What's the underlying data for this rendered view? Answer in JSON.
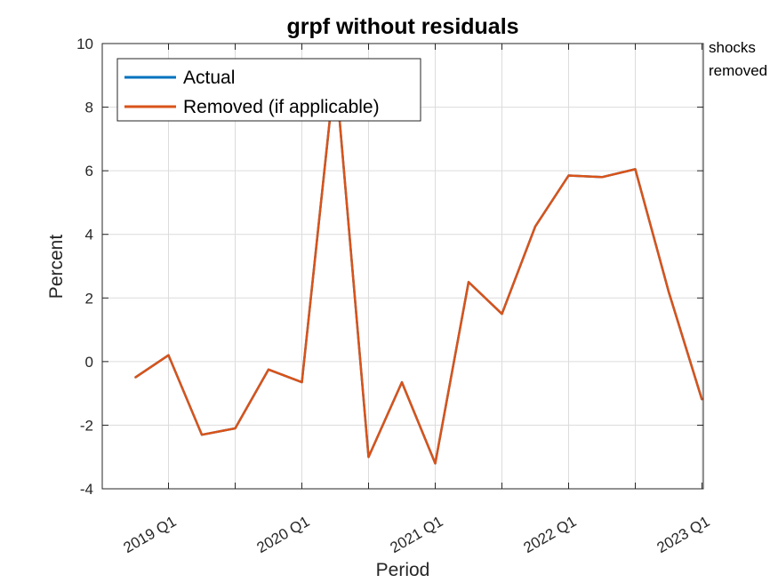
{
  "chart_data": {
    "type": "line",
    "title": "grpf without residuals",
    "xlabel": "Period",
    "ylabel": "Percent",
    "ylim": [
      -4,
      10
    ],
    "y_ticks": [
      "-4",
      "-2",
      "0",
      "2",
      "4",
      "6",
      "8",
      "10"
    ],
    "x_ticks": [
      "2019 Q1",
      "2020 Q1",
      "2021 Q1",
      "2022 Q1",
      "2023 Q1"
    ],
    "x": [
      "2018 Q4",
      "2019 Q1",
      "2019 Q2",
      "2019 Q3",
      "2019 Q4",
      "2020 Q1",
      "2020 Q2",
      "2020 Q3",
      "2020 Q4",
      "2021 Q1",
      "2021 Q2",
      "2021 Q3",
      "2021 Q4",
      "2022 Q1",
      "2022 Q2",
      "2022 Q3",
      "2022 Q4",
      "2023 Q1"
    ],
    "grid": true,
    "legend_position": "top-left",
    "series": [
      {
        "name": "Actual",
        "color": "#0072BD",
        "values": [
          -0.5,
          0.2,
          -2.3,
          -2.1,
          -0.25,
          -0.65,
          9.2,
          -3.0,
          -0.65,
          -3.2,
          2.5,
          1.5,
          4.25,
          5.85,
          5.8,
          6.05,
          2.2,
          -1.2
        ]
      },
      {
        "name": "Removed (if applicable)",
        "color": "#D95319",
        "values": [
          -0.5,
          0.2,
          -2.3,
          -2.1,
          -0.25,
          -0.65,
          9.2,
          -3.0,
          -0.65,
          -3.2,
          2.5,
          1.5,
          4.25,
          5.85,
          5.8,
          6.05,
          2.2,
          -1.2
        ]
      }
    ]
  },
  "annotation": {
    "line1": "shocks",
    "line2": "removed"
  }
}
